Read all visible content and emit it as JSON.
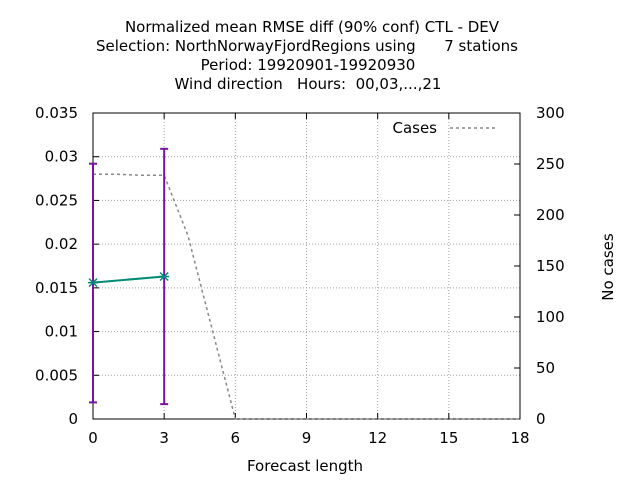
{
  "chart_data": {
    "type": "line",
    "title_lines": [
      "Normalized mean RMSE diff (90% conf) CTL - DEV",
      "Selection: NorthNorwayFjordRegions using      7 stations",
      "Period: 19920901-19920930",
      "Wind direction   Hours:  00,03,...,21"
    ],
    "xlabel": "Forecast length",
    "ylabel_right": "No cases",
    "xlim": [
      0,
      18
    ],
    "ylim": [
      0,
      0.035
    ],
    "y2lim": [
      0,
      300
    ],
    "x_ticks": [
      "0",
      "3",
      "6",
      "9",
      "12",
      "15",
      "18"
    ],
    "y_ticks": [
      "0",
      "0.005",
      "0.01",
      "0.015",
      "0.02",
      "0.025",
      "0.03",
      "0.035"
    ],
    "y2_ticks": [
      "0",
      "50",
      "100",
      "150",
      "200",
      "250",
      "300"
    ],
    "grid": true,
    "legend_position": "top-right",
    "series": [
      {
        "axis": "left",
        "style": "line-errorbars",
        "color": "#008b74",
        "errorbar_color": "#7b12a5",
        "x": [
          0,
          3
        ],
        "y": [
          0.0156,
          0.0163
        ],
        "err_low": [
          0.0019,
          0.0017
        ],
        "err_high": [
          0.0292,
          0.0309
        ]
      },
      {
        "name": "Cases",
        "axis": "right",
        "style": "dashed",
        "color": "#888888",
        "x": [
          0,
          1,
          2,
          3,
          4,
          5,
          6,
          7,
          8,
          9,
          10,
          11,
          12,
          13,
          14,
          15,
          16,
          17,
          18
        ],
        "y": [
          240,
          240,
          239,
          239,
          180,
          90,
          0,
          0,
          0,
          0,
          0,
          0,
          0,
          0,
          0,
          0,
          0,
          0,
          0
        ]
      }
    ]
  }
}
